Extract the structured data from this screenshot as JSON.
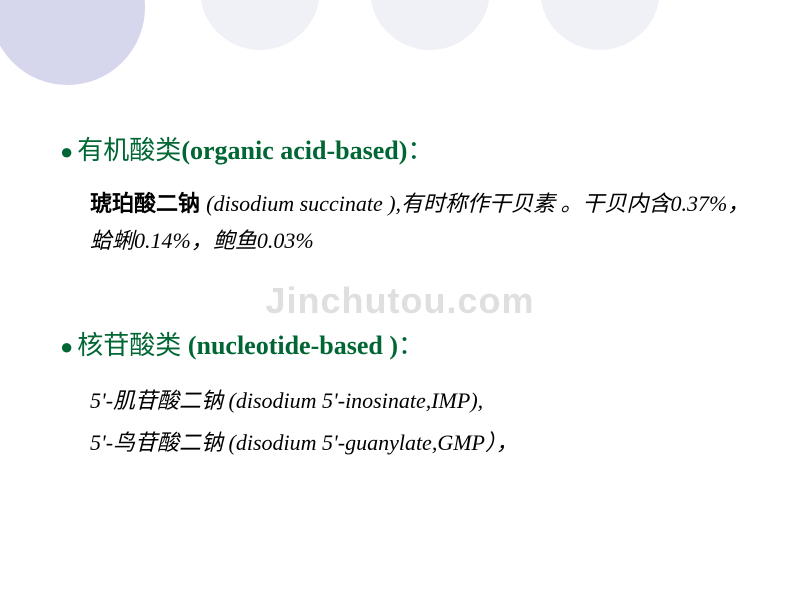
{
  "circles": {
    "c1_bg": "#d6d6ec",
    "c2_bg": "#f0f0f7",
    "c3_bg": "#f0f0f7",
    "c4_bg": "#f0f0f7"
  },
  "section1": {
    "bullet": "●",
    "heading_cn": "有机酸类",
    "heading_paren_open": "(",
    "heading_en": "organic acid-based",
    "heading_paren_close": ")",
    "heading_colon": "：",
    "body_first": "琥珀酸二钠 ",
    "body_rest": "(disodium succinate ),有时称作干贝素 。干贝内含0.37%，蛤蜊0.14%，鲍鱼0.03%"
  },
  "section2": {
    "bullet": "●",
    "heading_cn": "核苷酸类",
    "heading_paren_open": " (",
    "heading_en": "nucleotide-based ",
    "heading_paren_close": ")",
    "heading_colon": "：",
    "item1": "5'-肌苷酸二钠 (disodium 5'-inosinate,IMP),",
    "item2": "5'-鸟苷酸二钠 (disodium 5'-guanylate,GMP），"
  },
  "watermark": "Jinchutou.com",
  "colors": {
    "heading": "#006633",
    "text": "#000000",
    "watermark": "#dfdfdf",
    "background": "#ffffff"
  },
  "fonts": {
    "heading_size": 26,
    "body_size": 22,
    "watermark_size": 36
  }
}
